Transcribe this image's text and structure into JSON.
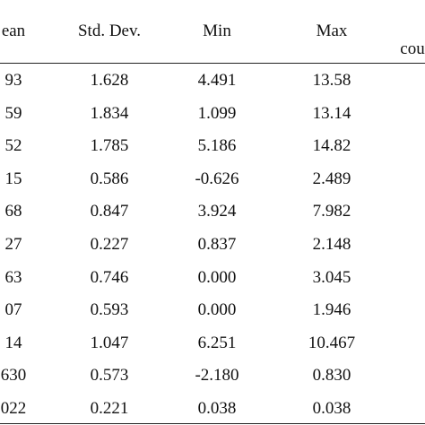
{
  "table": {
    "header": [
      "ean",
      "Std. Dev.",
      "Min",
      "Max",
      "cou"
    ],
    "rows": [
      [
        "93",
        "1.628",
        "4.491",
        "13.58"
      ],
      [
        "59",
        "1.834",
        "1.099",
        "13.14"
      ],
      [
        "52",
        "1.785",
        "5.186",
        "14.82"
      ],
      [
        "15",
        "0.586",
        "-0.626",
        "2.489"
      ],
      [
        "68",
        "0.847",
        "3.924",
        "7.982"
      ],
      [
        "27",
        "0.227",
        "0.837",
        "2.148"
      ],
      [
        "63",
        "0.746",
        "0.000",
        "3.045"
      ],
      [
        "07",
        "0.593",
        "0.000",
        "1.946"
      ],
      [
        "14",
        "1.047",
        "6.251",
        "10.467"
      ],
      [
        "630",
        "0.573",
        "-2.180",
        "0.830"
      ],
      [
        "022",
        "0.221",
        "0.038",
        "0.038"
      ]
    ]
  }
}
